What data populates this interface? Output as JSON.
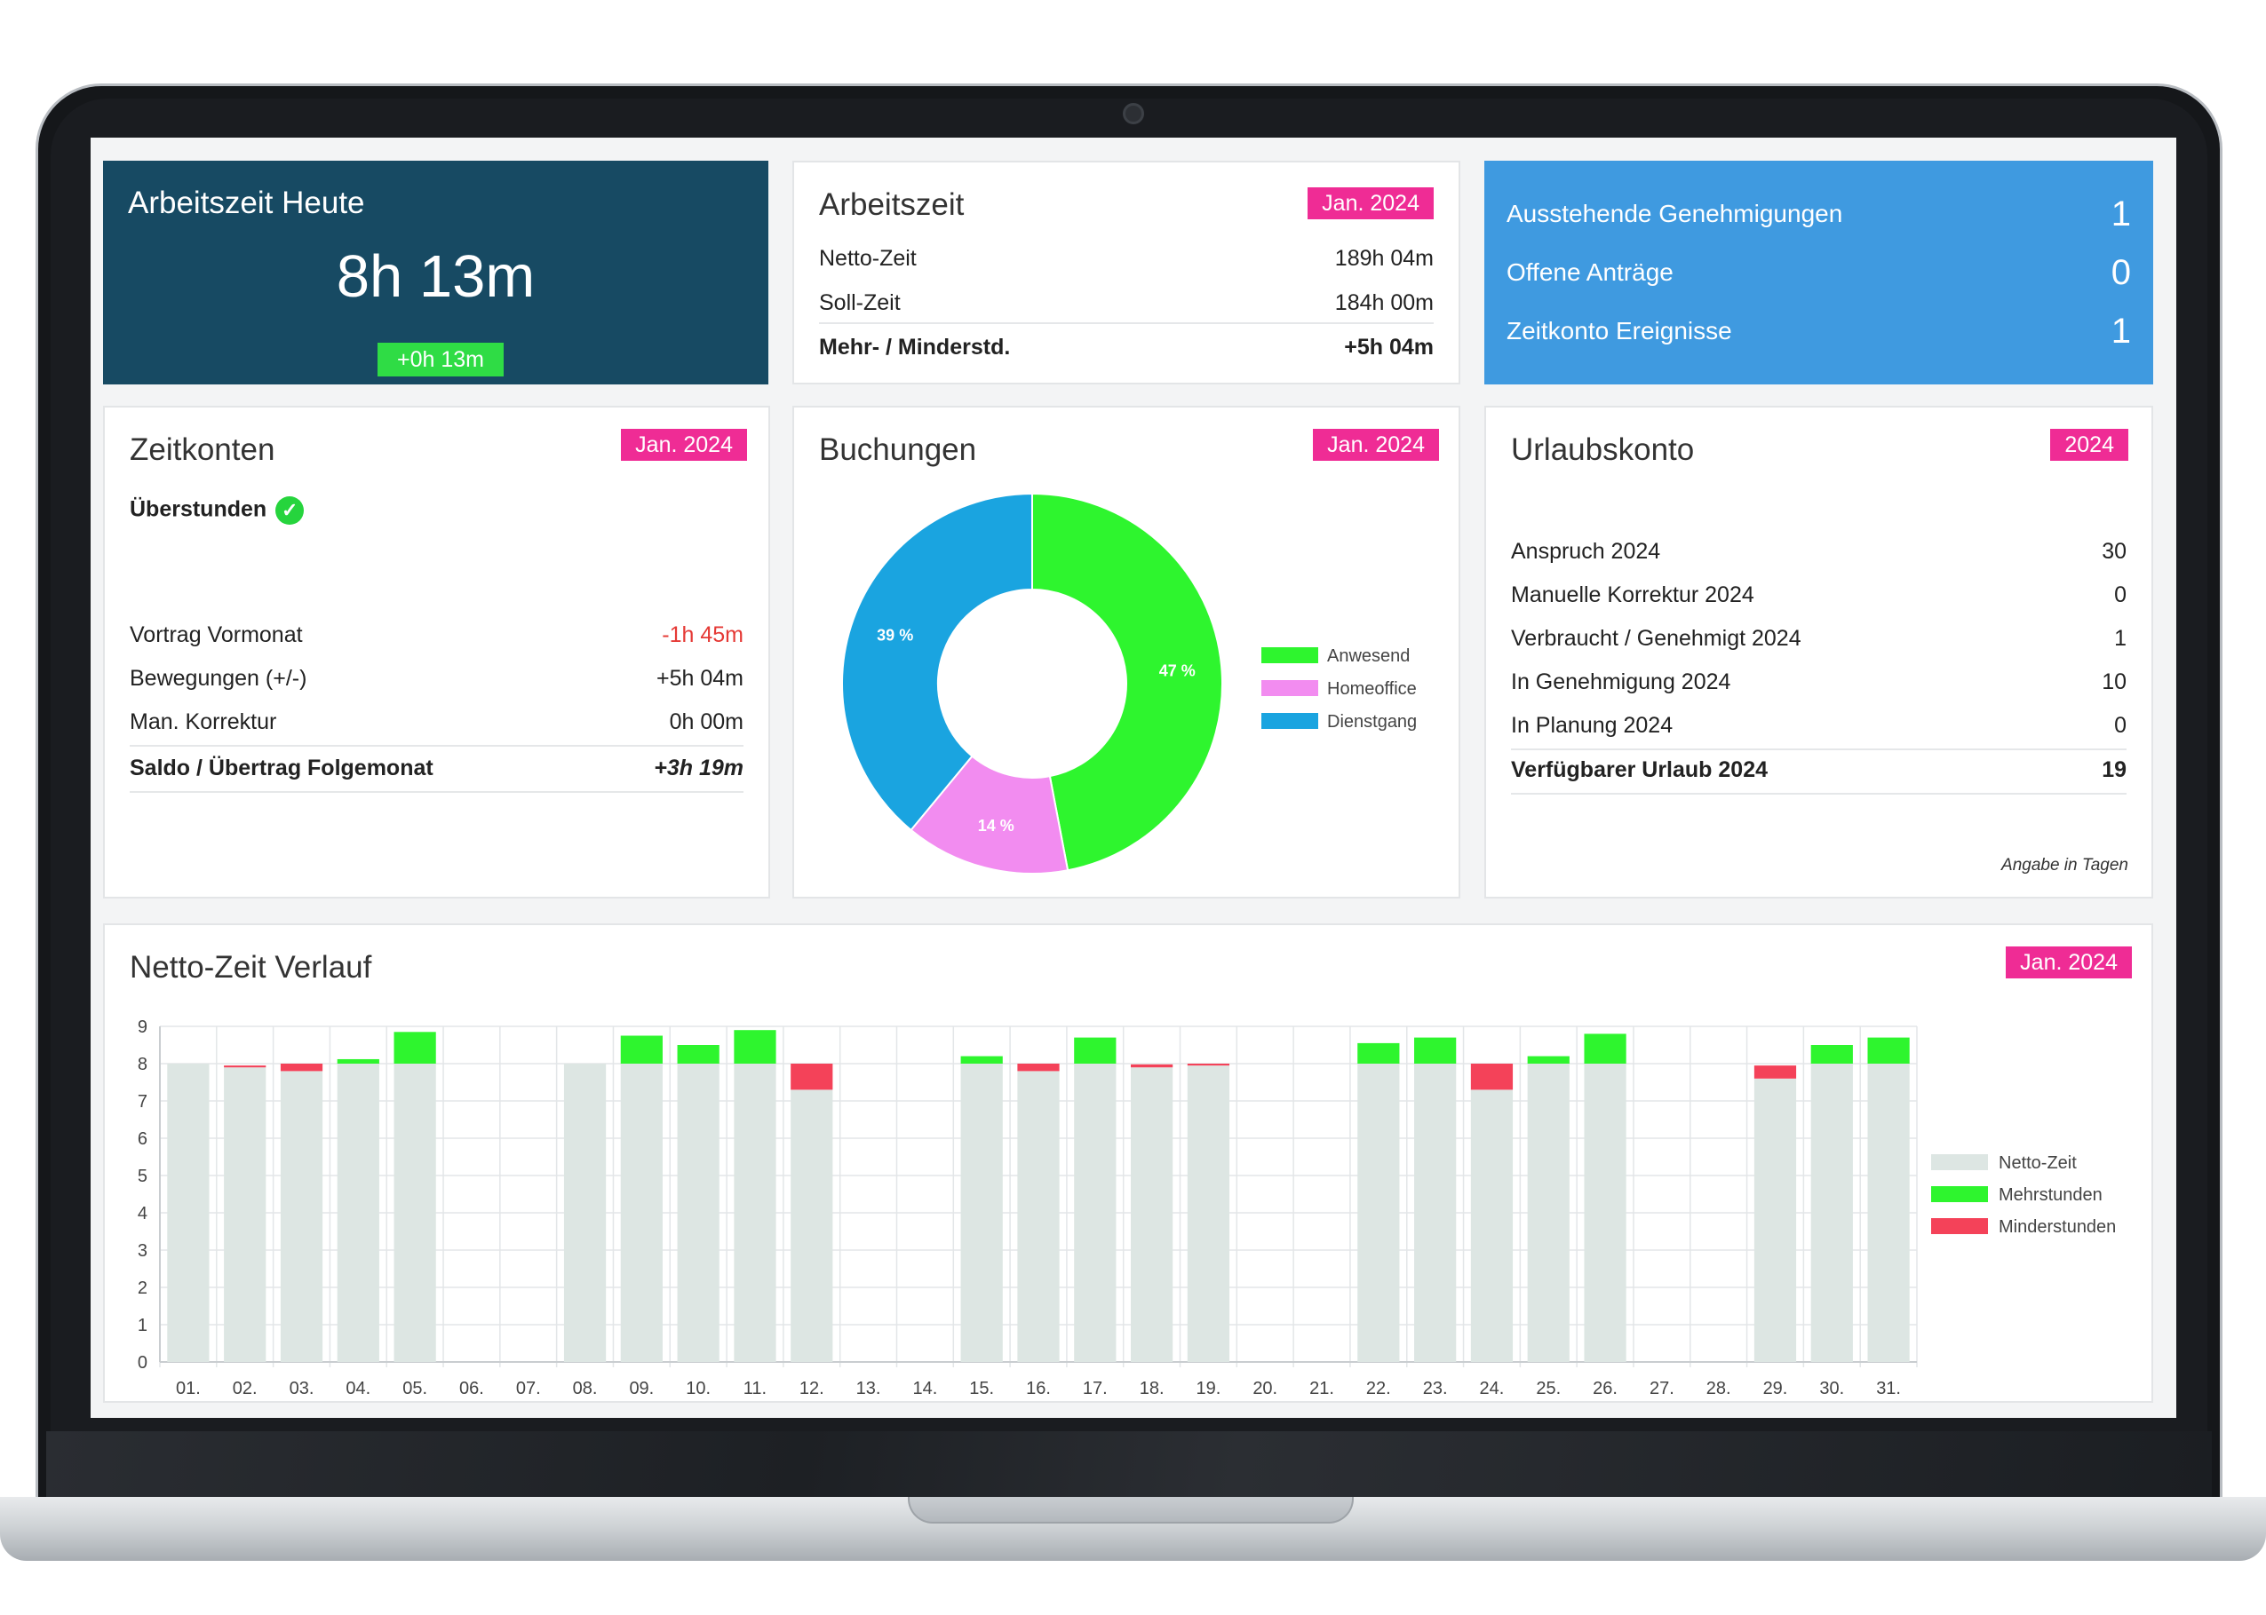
{
  "today": {
    "title": "Arbeitszeit Heute",
    "value": "8h 13m",
    "delta": "+0h 13m"
  },
  "arbeitszeit": {
    "title": "Arbeitszeit",
    "badge": "Jan. 2024",
    "rows": [
      {
        "label": "Netto-Zeit",
        "value": "189h 04m"
      },
      {
        "label": "Soll-Zeit",
        "value": "184h 00m"
      },
      {
        "label": "Mehr- / Minderstd.",
        "value": "+5h 04m"
      }
    ]
  },
  "approvals": {
    "rows": [
      {
        "label": "Ausstehende Genehmigungen",
        "value": "1"
      },
      {
        "label": "Offene Anträge",
        "value": "0"
      },
      {
        "label": "Zeitkonto Ereignisse",
        "value": "1"
      }
    ]
  },
  "zeitkonten": {
    "title": "Zeitkonten",
    "badge": "Jan. 2024",
    "subtitle": "Überstunden",
    "rows": [
      {
        "label": "Vortrag Vormonat",
        "value": "-1h 45m"
      },
      {
        "label": "Bewegungen (+/-)",
        "value": "+5h 04m"
      },
      {
        "label": "Man. Korrektur",
        "value": "0h 00m"
      },
      {
        "label": "Saldo / Übertrag Folgemonat",
        "value": "+3h 19m"
      }
    ],
    "negative_color": "#e53935"
  },
  "buchungen": {
    "title": "Buchungen",
    "badge": "Jan. 2024"
  },
  "urlaub": {
    "title": "Urlaubskonto",
    "badge": "2024",
    "rows": [
      {
        "label": "Anspruch 2024",
        "value": "30"
      },
      {
        "label": "Manuelle Korrektur 2024",
        "value": "0"
      },
      {
        "label": "Verbraucht / Genehmigt 2024",
        "value": "1"
      },
      {
        "label": "In Genehmigung 2024",
        "value": "10"
      },
      {
        "label": "In Planung 2024",
        "value": "0"
      },
      {
        "label": "Verfügbarer Urlaub 2024",
        "value": "19"
      }
    ],
    "footnote": "Angabe in Tagen"
  },
  "verlauf": {
    "title": "Netto-Zeit Verlauf",
    "badge": "Jan. 2024"
  },
  "colors": {
    "accent": "#ef2c95",
    "dark_card": "#174a63",
    "blue_card": "#3f9ae0",
    "green": "#2ef52e",
    "red": "#f44259",
    "grey_bar": "#dde6e3",
    "pink": "#f28cf0",
    "blue": "#1aa4e0"
  },
  "chart_data": [
    {
      "type": "pie",
      "title": "Buchungen",
      "labels": [
        "Anwesend",
        "Homeoffice",
        "Dienstgang"
      ],
      "values": [
        47,
        14,
        39
      ],
      "value_labels": [
        "47 %",
        "14 %",
        "39 %"
      ],
      "colors": [
        "#2ef52e",
        "#f28cf0",
        "#1aa4e0"
      ],
      "donut": true,
      "legend": "right"
    },
    {
      "type": "bar",
      "title": "Netto-Zeit Verlauf",
      "categories": [
        "01.",
        "02.",
        "03.",
        "04.",
        "05.",
        "06.",
        "07.",
        "08.",
        "09.",
        "10.",
        "11.",
        "12.",
        "13.",
        "14.",
        "15.",
        "16.",
        "17.",
        "18.",
        "19.",
        "20.",
        "21.",
        "22.",
        "23.",
        "24.",
        "25.",
        "26.",
        "27.",
        "28.",
        "29.",
        "30.",
        "31."
      ],
      "series": [
        {
          "name": "Netto-Zeit",
          "color": "#dde6e3",
          "values": [
            8,
            7.9,
            7.8,
            8,
            8,
            0,
            0,
            8,
            8,
            8,
            8,
            7.3,
            0,
            0,
            8,
            7.8,
            8,
            7.9,
            7.95,
            0,
            0,
            8,
            8,
            7.3,
            8,
            8,
            0,
            0,
            7.6,
            8,
            8
          ]
        },
        {
          "name": "Mehrstunden",
          "color": "#2ef52e",
          "values": [
            0,
            0,
            0,
            0.12,
            0.85,
            0,
            0,
            0,
            0.75,
            0.5,
            0.9,
            0,
            0,
            0,
            0.2,
            0,
            0.7,
            0,
            0,
            0,
            0,
            0.55,
            0.7,
            0,
            0.2,
            0.8,
            0,
            0,
            0,
            0.5,
            0.7
          ]
        },
        {
          "name": "Minderstunden",
          "color": "#f44259",
          "values": [
            0,
            0.05,
            0.2,
            0,
            0,
            0,
            0,
            0,
            0,
            0,
            0,
            0.7,
            0,
            0,
            0,
            0.2,
            0,
            0.08,
            0.05,
            0,
            0,
            0,
            0,
            0.7,
            0,
            0,
            0,
            0,
            0.35,
            0,
            0
          ]
        }
      ],
      "stacked": true,
      "ylim": [
        0,
        9
      ],
      "yticks": [
        "0",
        "1",
        "2",
        "3",
        "4",
        "5",
        "6",
        "7",
        "8",
        "9"
      ],
      "grid": true,
      "legend": "right"
    }
  ]
}
